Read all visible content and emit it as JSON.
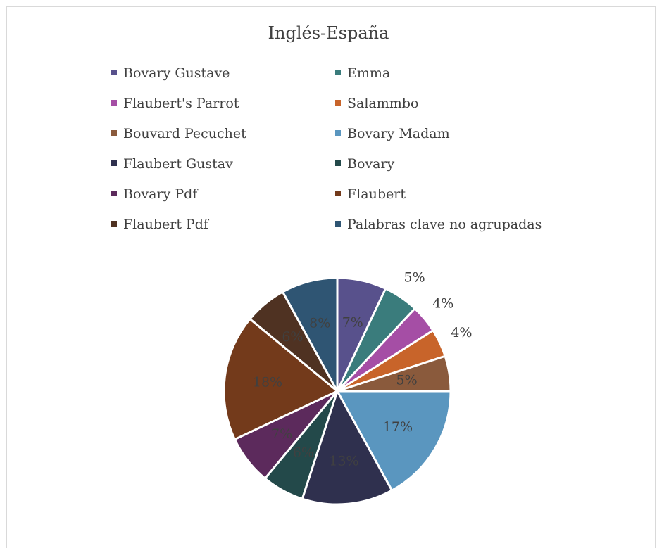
{
  "chart_data": {
    "type": "pie",
    "title": "Inglés-España",
    "legend_position": "top",
    "categories": [
      "Bovary Gustave",
      "Emma",
      "Flaubert's Parrot",
      "Salammbo",
      "Bouvard Pecuchet",
      "Bovary Madam",
      "Flaubert Gustav",
      "Bovary",
      "Bovary Pdf",
      "Flaubert",
      "Flaubert Pdf",
      "Palabras clave no agrupadas"
    ],
    "values": [
      7,
      5,
      4,
      4,
      5,
      17,
      13,
      6,
      7,
      18,
      6,
      8
    ],
    "labels": [
      "7%",
      "5%",
      "4%",
      "4%",
      "5%",
      "17%",
      "13%",
      "6%",
      "7%",
      "18%",
      "6%",
      "8%"
    ],
    "colors": [
      "#58518c",
      "#3a7c7c",
      "#a54ea5",
      "#c8642a",
      "#8a5a3c",
      "#5a96bf",
      "#2f304e",
      "#23494a",
      "#5c2a5c",
      "#733a1b",
      "#4f3222",
      "#2f5573"
    ]
  }
}
